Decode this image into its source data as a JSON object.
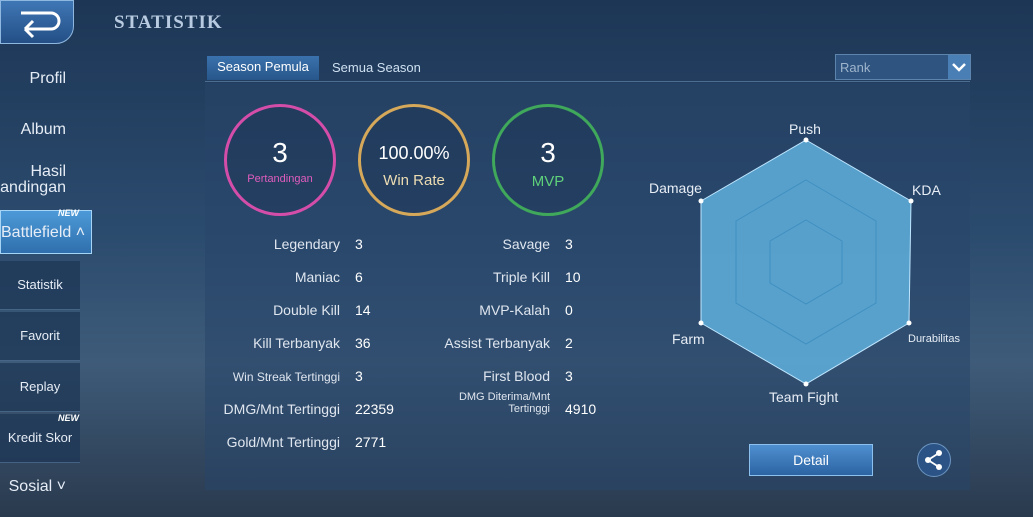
{
  "header": {
    "title": "STATISTIK"
  },
  "sidebar": {
    "items": [
      {
        "label": "Profil"
      },
      {
        "label": "Album"
      },
      {
        "label": "Hasil Pertandingan"
      },
      {
        "label": "Battlefield",
        "badge": "NEW"
      },
      {
        "label": "Statistik"
      },
      {
        "label": "Favorit"
      },
      {
        "label": "Replay"
      },
      {
        "label": "Kredit Skor",
        "badge": "NEW"
      },
      {
        "label": "Sosial"
      }
    ]
  },
  "tabs": [
    "Season Pemula",
    "Semua Season"
  ],
  "dropdown": "Rank",
  "summary": [
    {
      "value": 3,
      "label": "Pertandingan"
    },
    {
      "value": "100.00%",
      "label": "Win Rate"
    },
    {
      "value": 3,
      "label": "MVP"
    }
  ],
  "stats_left": [
    [
      "Legendary",
      3
    ],
    [
      "Maniac",
      6
    ],
    [
      "Double Kill",
      14
    ],
    [
      "Kill Terbanyak",
      36
    ],
    [
      "Win Streak Tertinggi",
      3
    ],
    [
      "DMG/Mnt Tertinggi",
      22359
    ],
    [
      "Gold/Mnt Tertinggi",
      2771
    ]
  ],
  "stats_right": [
    [
      "Savage",
      3
    ],
    [
      "Triple Kill",
      10
    ],
    [
      "MVP-Kalah",
      0
    ],
    [
      "Assist Terbanyak",
      2
    ],
    [
      "First Blood",
      3
    ],
    [
      "DMG Diterima/Mnt Tertinggi",
      4910
    ]
  ],
  "radar": {
    "labels": [
      "Push",
      "KDA",
      "Durabilitas",
      "Team Fight",
      "Farm",
      "Damage"
    ]
  },
  "button": "Detail"
}
